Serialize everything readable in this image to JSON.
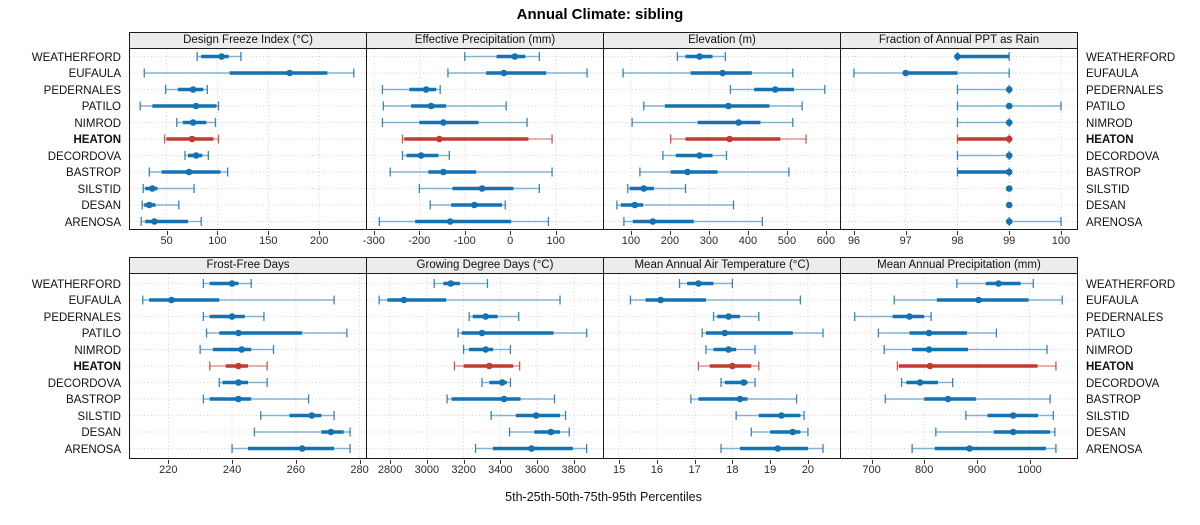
{
  "title": "Annual Climate: sibling",
  "caption": "5th-25th-50th-75th-95th Percentiles",
  "sites": [
    "WEATHERFORD",
    "EUFAULA",
    "PEDERNALES",
    "PATILO",
    "NIMROD",
    "HEATON",
    "DECORDOVA",
    "BASTROP",
    "SILSTID",
    "DESAN",
    "ARENOSA"
  ],
  "highlight_site": "HEATON",
  "colors": {
    "normal": "#1471b2",
    "highlight": "#c23b30",
    "grid": "#d4d4d4",
    "strip_bg": "#ececec",
    "panel_border": "#1a1a1a"
  },
  "chart_data": {
    "type": "dotplot-percentiles",
    "percentiles": [
      5,
      25,
      50,
      75,
      95
    ],
    "legend_note": "thin line = 5th-95th, thick line = 25th-75th, dot = 50th",
    "panels": [
      {
        "title": "Design Freeze Index (°C)",
        "ticks": [
          50,
          100,
          150,
          200
        ],
        "xlim": [
          14,
          246
        ],
        "values": [
          [
            80,
            84,
            104,
            111,
            123
          ],
          [
            28,
            112,
            171,
            208,
            234
          ],
          [
            49,
            61,
            76,
            86,
            90
          ],
          [
            24,
            36,
            79,
            99,
            101
          ],
          [
            60,
            66,
            76,
            89,
            98
          ],
          [
            48,
            50,
            75,
            96,
            101
          ],
          [
            68,
            71,
            79,
            85,
            91
          ],
          [
            33,
            45,
            72,
            103,
            110
          ],
          [
            27,
            29,
            36,
            41,
            77
          ],
          [
            26,
            28,
            33,
            39,
            62
          ],
          [
            25,
            29,
            38,
            71,
            84
          ]
        ]
      },
      {
        "title": "Effective Precipitation (mm)",
        "ticks": [
          -300,
          -200,
          -100,
          0,
          100
        ],
        "xlim": [
          -315,
          204
        ],
        "values": [
          [
            -100,
            -30,
            10,
            33,
            64
          ],
          [
            -137,
            -53,
            -14,
            79,
            169
          ],
          [
            -281,
            -222,
            -185,
            -163,
            -154
          ],
          [
            -279,
            -218,
            -174,
            -141,
            -9
          ],
          [
            -281,
            -200,
            -147,
            -70,
            37
          ],
          [
            -237,
            -233,
            -156,
            40,
            92
          ],
          [
            -237,
            -228,
            -196,
            -158,
            -134
          ],
          [
            -264,
            -180,
            -147,
            -75,
            92
          ],
          [
            -200,
            -127,
            -62,
            7,
            64
          ],
          [
            -176,
            -130,
            -79,
            -18,
            -11
          ],
          [
            -288,
            -209,
            -132,
            2,
            84
          ]
        ]
      },
      {
        "title": "Elevation (m)",
        "ticks": [
          100,
          200,
          300,
          400,
          500,
          600
        ],
        "xlim": [
          31,
          636
        ],
        "values": [
          [
            219,
            240,
            276,
            309,
            342
          ],
          [
            80,
            253,
            335,
            410,
            515
          ],
          [
            355,
            416,
            470,
            518,
            597
          ],
          [
            133,
            187,
            350,
            455,
            539
          ],
          [
            103,
            271,
            376,
            432,
            515
          ],
          [
            202,
            240,
            353,
            483,
            549
          ],
          [
            182,
            215,
            276,
            309,
            345
          ],
          [
            123,
            202,
            245,
            322,
            505
          ],
          [
            92,
            97,
            133,
            159,
            240
          ],
          [
            64,
            74,
            110,
            131,
            363
          ],
          [
            82,
            105,
            156,
            261,
            437
          ]
        ]
      },
      {
        "title": "Fraction of Annual PPT as Rain",
        "ticks": [
          96,
          97,
          98,
          99,
          100
        ],
        "xlim": [
          95.75,
          100.31
        ],
        "values": [
          [
            98,
            98,
            98,
            99,
            99
          ],
          [
            96,
            97,
            97,
            98,
            99
          ],
          [
            98,
            99,
            99,
            99,
            99
          ],
          [
            98,
            99,
            99,
            99,
            100
          ],
          [
            98,
            99,
            99,
            99,
            99
          ],
          [
            98,
            98,
            99,
            99,
            99
          ],
          [
            98,
            99,
            99,
            99,
            99
          ],
          [
            98,
            98,
            99,
            99,
            99
          ],
          [
            99,
            99,
            99,
            99,
            99
          ],
          [
            99,
            99,
            99,
            99,
            99
          ],
          [
            99,
            99,
            99,
            99,
            100
          ]
        ]
      },
      {
        "title": "Frost-Free Days",
        "ticks": [
          220,
          240,
          260,
          280
        ],
        "xlim": [
          208,
          282
        ],
        "values": [
          [
            231,
            233,
            240,
            242,
            246
          ],
          [
            212,
            214,
            221,
            236,
            272
          ],
          [
            231,
            233,
            240,
            244,
            250
          ],
          [
            232,
            236,
            242,
            262,
            276
          ],
          [
            230,
            234,
            243,
            246,
            253
          ],
          [
            233,
            238,
            242,
            245,
            251
          ],
          [
            236,
            237,
            242,
            245,
            251
          ],
          [
            231,
            233,
            242,
            246,
            264
          ],
          [
            249,
            258,
            265,
            268,
            272
          ],
          [
            247,
            268,
            271,
            275,
            277
          ],
          [
            240,
            245,
            262,
            272,
            277
          ]
        ]
      },
      {
        "title": "Growing Degree Days (°C)",
        "ticks": [
          2800,
          3000,
          3200,
          3400,
          3600,
          3800
        ],
        "xlim": [
          2674,
          3959
        ],
        "values": [
          [
            3040,
            3090,
            3130,
            3180,
            3330
          ],
          [
            2740,
            2785,
            2875,
            3105,
            3725
          ],
          [
            3230,
            3250,
            3320,
            3385,
            3500
          ],
          [
            3170,
            3190,
            3300,
            3690,
            3870
          ],
          [
            3200,
            3230,
            3320,
            3360,
            3455
          ],
          [
            3150,
            3200,
            3340,
            3470,
            3505
          ],
          [
            3300,
            3340,
            3410,
            3435,
            3455
          ],
          [
            3110,
            3135,
            3420,
            3510,
            3695
          ],
          [
            3350,
            3485,
            3595,
            3725,
            3755
          ],
          [
            3450,
            3585,
            3675,
            3725,
            3775
          ],
          [
            3265,
            3360,
            3570,
            3795,
            3870
          ]
        ]
      },
      {
        "title": "Mean Annual Air Temperature (°C)",
        "ticks": [
          15,
          16,
          17,
          18,
          19,
          20
        ],
        "xlim": [
          14.6,
          20.85
        ],
        "values": [
          [
            16.6,
            16.8,
            17.1,
            17.5,
            18.0
          ],
          [
            15.3,
            15.7,
            16.1,
            17.3,
            19.8
          ],
          [
            17.5,
            17.6,
            17.9,
            18.2,
            18.7
          ],
          [
            17.2,
            17.3,
            17.8,
            19.6,
            20.4
          ],
          [
            17.3,
            17.5,
            17.9,
            18.1,
            18.6
          ],
          [
            17.1,
            17.4,
            18.0,
            18.5,
            18.7
          ],
          [
            17.7,
            17.8,
            18.3,
            18.4,
            18.6
          ],
          [
            16.9,
            17.1,
            18.2,
            18.4,
            19.7
          ],
          [
            18.1,
            18.7,
            19.3,
            19.8,
            19.9
          ],
          [
            18.5,
            19.0,
            19.6,
            19.8,
            20.0
          ],
          [
            17.7,
            18.2,
            19.2,
            20.0,
            20.4
          ]
        ]
      },
      {
        "title": "Mean Annual Precipitation (mm)",
        "ticks": [
          700,
          800,
          900,
          1000
        ],
        "xlim": [
          642,
          1090
        ],
        "values": [
          [
            862,
            917,
            941,
            983,
            1007
          ],
          [
            743,
            824,
            903,
            998,
            1062
          ],
          [
            668,
            740,
            772,
            800,
            813
          ],
          [
            713,
            772,
            809,
            881,
            937
          ],
          [
            724,
            777,
            809,
            883,
            1033
          ],
          [
            749,
            752,
            811,
            1015,
            1050
          ],
          [
            757,
            766,
            792,
            826,
            854
          ],
          [
            726,
            800,
            845,
            898,
            1039
          ],
          [
            879,
            920,
            969,
            1016,
            1045
          ],
          [
            822,
            932,
            969,
            1039,
            1048
          ],
          [
            777,
            820,
            886,
            1031,
            1050
          ]
        ]
      }
    ]
  }
}
